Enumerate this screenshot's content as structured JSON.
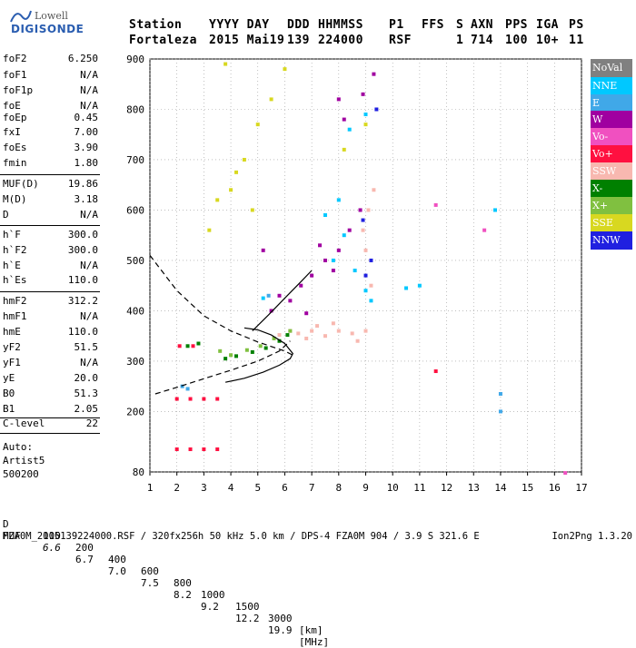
{
  "logo": {
    "line1": "Lowell",
    "line2": "DIGISONDE"
  },
  "header": {
    "row1": [
      "Station",
      "YYYY DAY",
      "DDD",
      "HHMMSS",
      "P1",
      "FFS",
      "S",
      "AXN",
      "PPS",
      "IGA",
      "PS"
    ],
    "row2": [
      "Fortaleza",
      "2015 Mai19",
      "139",
      "224000",
      "RSF",
      "1",
      "714",
      "100",
      "10+",
      "11"
    ]
  },
  "params": {
    "group1": [
      {
        "k": "foF2",
        "v": "6.250"
      },
      {
        "k": "foF1",
        "v": "N/A"
      },
      {
        "k": "foF1p",
        "v": "N/A"
      },
      {
        "k": "foE",
        "v": "N/A"
      },
      {
        "k": "foEp",
        "v": "0.45"
      },
      {
        "k": "fxI",
        "v": "7.00"
      },
      {
        "k": "foEs",
        "v": "3.90"
      },
      {
        "k": "fmin",
        "v": "1.80"
      }
    ],
    "group2": [
      {
        "k": "MUF(D)",
        "v": "19.86"
      },
      {
        "k": "M(D)",
        "v": "3.18"
      },
      {
        "k": "D",
        "v": "N/A"
      }
    ],
    "group3": [
      {
        "k": "h`F",
        "v": "300.0"
      },
      {
        "k": "h`F2",
        "v": "300.0"
      },
      {
        "k": "h`E",
        "v": "N/A"
      },
      {
        "k": "h`Es",
        "v": "110.0"
      }
    ],
    "group4": [
      {
        "k": "hmF2",
        "v": "312.2"
      },
      {
        "k": "hmF1",
        "v": "N/A"
      },
      {
        "k": "hmE",
        "v": "110.0"
      },
      {
        "k": "yF2",
        "v": "51.5"
      },
      {
        "k": "yF1",
        "v": "N/A"
      },
      {
        "k": "yE",
        "v": "20.0"
      },
      {
        "k": "B0",
        "v": "51.3"
      },
      {
        "k": "B1",
        "v": "2.05"
      }
    ],
    "clevel": {
      "k": "C-level",
      "v": "22"
    },
    "auto": [
      "Auto:",
      "Artist5",
      "500200"
    ]
  },
  "legend": [
    {
      "label": "NoVal",
      "color": "#808080"
    },
    {
      "label": "NNE",
      "color": "#00c8ff"
    },
    {
      "label": "E",
      "color": "#40a8e8"
    },
    {
      "label": "W",
      "color": "#a000a0"
    },
    {
      "label": "Vo-",
      "color": "#f050c0"
    },
    {
      "label": "Vo+",
      "color": "#ff1040"
    },
    {
      "label": "SSW",
      "color": "#f8b8b0"
    },
    {
      "label": "X-",
      "color": "#008000"
    },
    {
      "label": "X+",
      "color": "#80c040"
    },
    {
      "label": "SSE",
      "color": "#d8d820"
    },
    {
      "label": "NNW",
      "color": "#2020e0"
    }
  ],
  "footer": {
    "d_label": "D",
    "d_values": [
      "100",
      "200",
      "400",
      "600",
      "800",
      "1000",
      "1500",
      "3000",
      "[km]"
    ],
    "muf_label": "MUF",
    "muf_values": [
      "6.6",
      "6.7",
      "7.0",
      "7.5",
      "8.2",
      "9.2",
      "12.2",
      "19.9",
      "[MHz]"
    ],
    "file_line": "FZA0M_2015139224000.RSF / 320fx256h 50 kHz 5.0 km / DPS-4 FZA0M 904 / 3.9 S 321.6 E",
    "version": "Ion2Png 1.3.20"
  },
  "chart_data": {
    "type": "scatter",
    "xlim": [
      1,
      17
    ],
    "ylim": [
      80,
      900
    ],
    "x_ticks": [
      1,
      2,
      3,
      4,
      5,
      6,
      7,
      8,
      9,
      10,
      11,
      12,
      13,
      14,
      15,
      16,
      17
    ],
    "y_ticks": [
      80,
      200,
      300,
      400,
      500,
      600,
      700,
      800,
      900
    ],
    "xlabel": "",
    "ylabel": "",
    "grid": "dotted",
    "legend_position": "right",
    "series": [
      {
        "color": "#f8b8b0",
        "points": [
          [
            6.2,
            360
          ],
          [
            6.5,
            355
          ],
          [
            7.0,
            360
          ],
          [
            7.5,
            350
          ],
          [
            8.0,
            360
          ],
          [
            8.5,
            355
          ],
          [
            9.0,
            360
          ],
          [
            7.2,
            370
          ],
          [
            6.8,
            345
          ],
          [
            8.7,
            340
          ],
          [
            5.8,
            352
          ],
          [
            7.8,
            375
          ],
          [
            9.2,
            450
          ],
          [
            9.0,
            520
          ],
          [
            8.9,
            560
          ],
          [
            9.1,
            600
          ],
          [
            9.3,
            640
          ]
        ]
      },
      {
        "color": "#a000a0",
        "points": [
          [
            6.2,
            420
          ],
          [
            6.6,
            450
          ],
          [
            7.0,
            470
          ],
          [
            7.5,
            500
          ],
          [
            8.0,
            520
          ],
          [
            8.4,
            560
          ],
          [
            8.8,
            600
          ],
          [
            5.5,
            400
          ],
          [
            5.8,
            430
          ],
          [
            6.8,
            395
          ],
          [
            7.8,
            480
          ],
          [
            8.2,
            780
          ],
          [
            8.0,
            820
          ],
          [
            8.9,
            830
          ],
          [
            9.3,
            870
          ],
          [
            5.2,
            520
          ],
          [
            7.3,
            530
          ]
        ]
      },
      {
        "color": "#00c8ff",
        "points": [
          [
            7.8,
            500
          ],
          [
            8.2,
            550
          ],
          [
            8.6,
            480
          ],
          [
            9.0,
            440
          ],
          [
            9.2,
            420
          ],
          [
            8.0,
            620
          ],
          [
            7.5,
            590
          ],
          [
            5.2,
            425
          ],
          [
            11.0,
            450
          ],
          [
            10.5,
            445
          ],
          [
            13.8,
            600
          ],
          [
            8.4,
            760
          ],
          [
            9.0,
            790
          ]
        ]
      },
      {
        "color": "#d8d820",
        "points": [
          [
            3.5,
            620
          ],
          [
            4.0,
            640
          ],
          [
            4.5,
            700
          ],
          [
            5.0,
            770
          ],
          [
            5.5,
            820
          ],
          [
            6.0,
            880
          ],
          [
            3.2,
            560
          ],
          [
            4.8,
            600
          ],
          [
            4.2,
            675
          ],
          [
            3.8,
            890
          ],
          [
            8.2,
            720
          ],
          [
            9.0,
            770
          ]
        ]
      },
      {
        "color": "#008000",
        "points": [
          [
            3.8,
            305
          ],
          [
            4.2,
            310
          ],
          [
            4.8,
            318
          ],
          [
            5.3,
            326
          ],
          [
            5.8,
            340
          ],
          [
            6.1,
            352
          ],
          [
            2.4,
            330
          ],
          [
            2.8,
            335
          ]
        ]
      },
      {
        "color": "#80c040",
        "points": [
          [
            4.0,
            312
          ],
          [
            4.6,
            322
          ],
          [
            5.1,
            330
          ],
          [
            5.6,
            345
          ],
          [
            6.2,
            360
          ],
          [
            3.6,
            320
          ]
        ]
      },
      {
        "color": "#ff1040",
        "points": [
          [
            2.0,
            225
          ],
          [
            2.5,
            225
          ],
          [
            3.0,
            225
          ],
          [
            3.5,
            225
          ],
          [
            2.0,
            125
          ],
          [
            2.5,
            125
          ],
          [
            3.0,
            125
          ],
          [
            3.5,
            125
          ],
          [
            2.1,
            330
          ],
          [
            2.6,
            330
          ],
          [
            11.6,
            280
          ]
        ]
      },
      {
        "color": "#40a8e8",
        "points": [
          [
            2.4,
            245
          ],
          [
            2.2,
            250
          ],
          [
            14.0,
            200
          ],
          [
            14.0,
            235
          ],
          [
            5.4,
            430
          ]
        ]
      },
      {
        "color": "#2020e0",
        "points": [
          [
            8.9,
            580
          ],
          [
            9.2,
            500
          ],
          [
            9.0,
            470
          ],
          [
            9.4,
            800
          ]
        ]
      },
      {
        "color": "#f050c0",
        "points": [
          [
            13.4,
            560
          ],
          [
            11.6,
            610
          ],
          [
            16.4,
            78
          ]
        ]
      }
    ],
    "curves": [
      {
        "style": "dashed",
        "points": [
          [
            1.0,
            510
          ],
          [
            2.0,
            440
          ],
          [
            3.0,
            390
          ],
          [
            4.0,
            360
          ],
          [
            5.0,
            338
          ],
          [
            6.0,
            320
          ],
          [
            6.3,
            312
          ]
        ]
      },
      {
        "style": "dashed",
        "points": [
          [
            1.2,
            235
          ],
          [
            2.0,
            248
          ],
          [
            3.0,
            265
          ],
          [
            4.0,
            282
          ],
          [
            5.0,
            300
          ],
          [
            5.8,
            320
          ],
          [
            6.2,
            340
          ]
        ]
      },
      {
        "style": "solid",
        "points": [
          [
            3.8,
            258
          ],
          [
            4.5,
            266
          ],
          [
            5.2,
            278
          ],
          [
            5.8,
            292
          ],
          [
            6.2,
            305
          ],
          [
            6.3,
            315
          ],
          [
            6.0,
            335
          ],
          [
            5.5,
            352
          ],
          [
            5.0,
            362
          ],
          [
            4.5,
            366
          ]
        ]
      },
      {
        "style": "solid",
        "points": [
          [
            4.8,
            360
          ],
          [
            5.4,
            392
          ],
          [
            6.0,
            425
          ],
          [
            6.6,
            458
          ],
          [
            7.0,
            480
          ]
        ]
      }
    ]
  }
}
